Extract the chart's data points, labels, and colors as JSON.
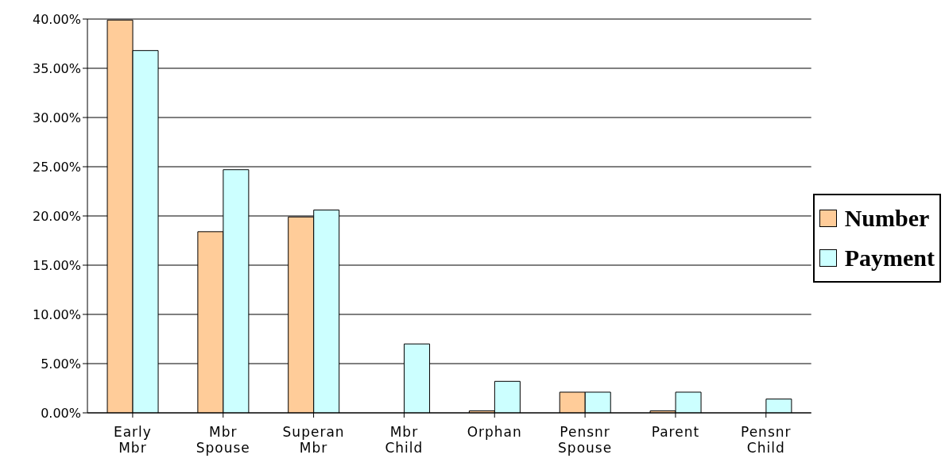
{
  "chart_data": {
    "type": "bar",
    "categories": [
      "Early Mbr",
      "Mbr Spouse",
      "Superan Mbr",
      "Mbr Child",
      "Orphan",
      "Pensnr Spouse",
      "Parent",
      "Pensnr Child"
    ],
    "series": [
      {
        "name": "Number",
        "color": "#ffcc99",
        "values": [
          39.9,
          18.4,
          19.9,
          0,
          0.2,
          2.1,
          0.2,
          0
        ]
      },
      {
        "name": "Payment",
        "color": "#ccffff",
        "values": [
          36.8,
          24.7,
          20.6,
          7.0,
          3.2,
          2.1,
          2.1,
          1.4
        ]
      }
    ],
    "ylim": [
      0,
      40
    ],
    "yticks": [
      {
        "value": 0,
        "label": "0.00%"
      },
      {
        "value": 5,
        "label": "5.00%"
      },
      {
        "value": 10,
        "label": "10.00%"
      },
      {
        "value": 15,
        "label": "15.00%"
      },
      {
        "value": 20,
        "label": "20.00%"
      },
      {
        "value": 25,
        "label": "25.00%"
      },
      {
        "value": 30,
        "label": "30.00%"
      },
      {
        "value": 35,
        "label": "35.00%"
      },
      {
        "value": 40,
        "label": "40.00%"
      }
    ],
    "grid": "y",
    "legend": "right"
  }
}
